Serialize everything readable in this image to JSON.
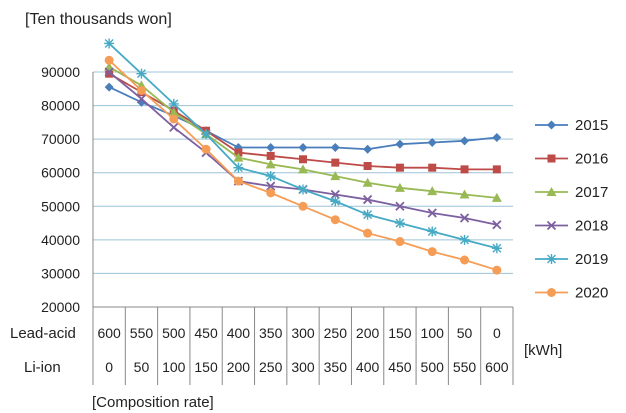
{
  "chart_data": {
    "type": "line",
    "title": "",
    "ylabel": "[Ten thousands won]",
    "xlabel": "[Composition rate]",
    "x_unit_label": "[kWh]",
    "row_labels": {
      "lead_acid": "Lead-acid",
      "li_ion": "Li-ion"
    },
    "lead_acid": [
      "600",
      "550",
      "500",
      "450",
      "400",
      "350",
      "300",
      "250",
      "200",
      "150",
      "100",
      "50",
      "0"
    ],
    "li_ion": [
      "0",
      "50",
      "100",
      "150",
      "200",
      "250",
      "300",
      "350",
      "400",
      "450",
      "500",
      "550",
      "600"
    ],
    "ylim": [
      20000,
      90000
    ],
    "yticks": [
      "20000",
      "30000",
      "40000",
      "50000",
      "60000",
      "70000",
      "80000",
      "90000"
    ],
    "grid": true,
    "legend_position": "right",
    "series": [
      {
        "name": "2015",
        "color": "#4a7ebb",
        "marker": "diamond",
        "values": [
          85500,
          81000,
          77000,
          72500,
          67500,
          67500,
          67500,
          67500,
          67000,
          68500,
          69000,
          69500,
          70500
        ]
      },
      {
        "name": "2016",
        "color": "#be4b48",
        "marker": "square",
        "values": [
          89500,
          84000,
          78500,
          72500,
          66000,
          65000,
          64000,
          63000,
          62000,
          61500,
          61500,
          61000,
          61000
        ]
      },
      {
        "name": "2017",
        "color": "#98b954",
        "marker": "triangle",
        "values": [
          91500,
          86000,
          78000,
          71500,
          64500,
          62500,
          61000,
          59000,
          57000,
          55500,
          54500,
          53500,
          52500
        ]
      },
      {
        "name": "2018",
        "color": "#7d60a0",
        "marker": "x",
        "values": [
          90000,
          82000,
          73500,
          66000,
          57500,
          56000,
          55000,
          53500,
          52000,
          50000,
          48000,
          46500,
          44500
        ]
      },
      {
        "name": "2019",
        "color": "#46aac5",
        "marker": "star",
        "values": [
          98500,
          89500,
          80500,
          71500,
          61500,
          59000,
          55000,
          51500,
          47500,
          45000,
          42500,
          40000,
          37500
        ]
      },
      {
        "name": "2020",
        "color": "#f59d56",
        "marker": "circle",
        "values": [
          93500,
          84500,
          76000,
          67000,
          57500,
          54000,
          50000,
          46000,
          42000,
          39500,
          36500,
          34000,
          31000
        ]
      }
    ]
  }
}
